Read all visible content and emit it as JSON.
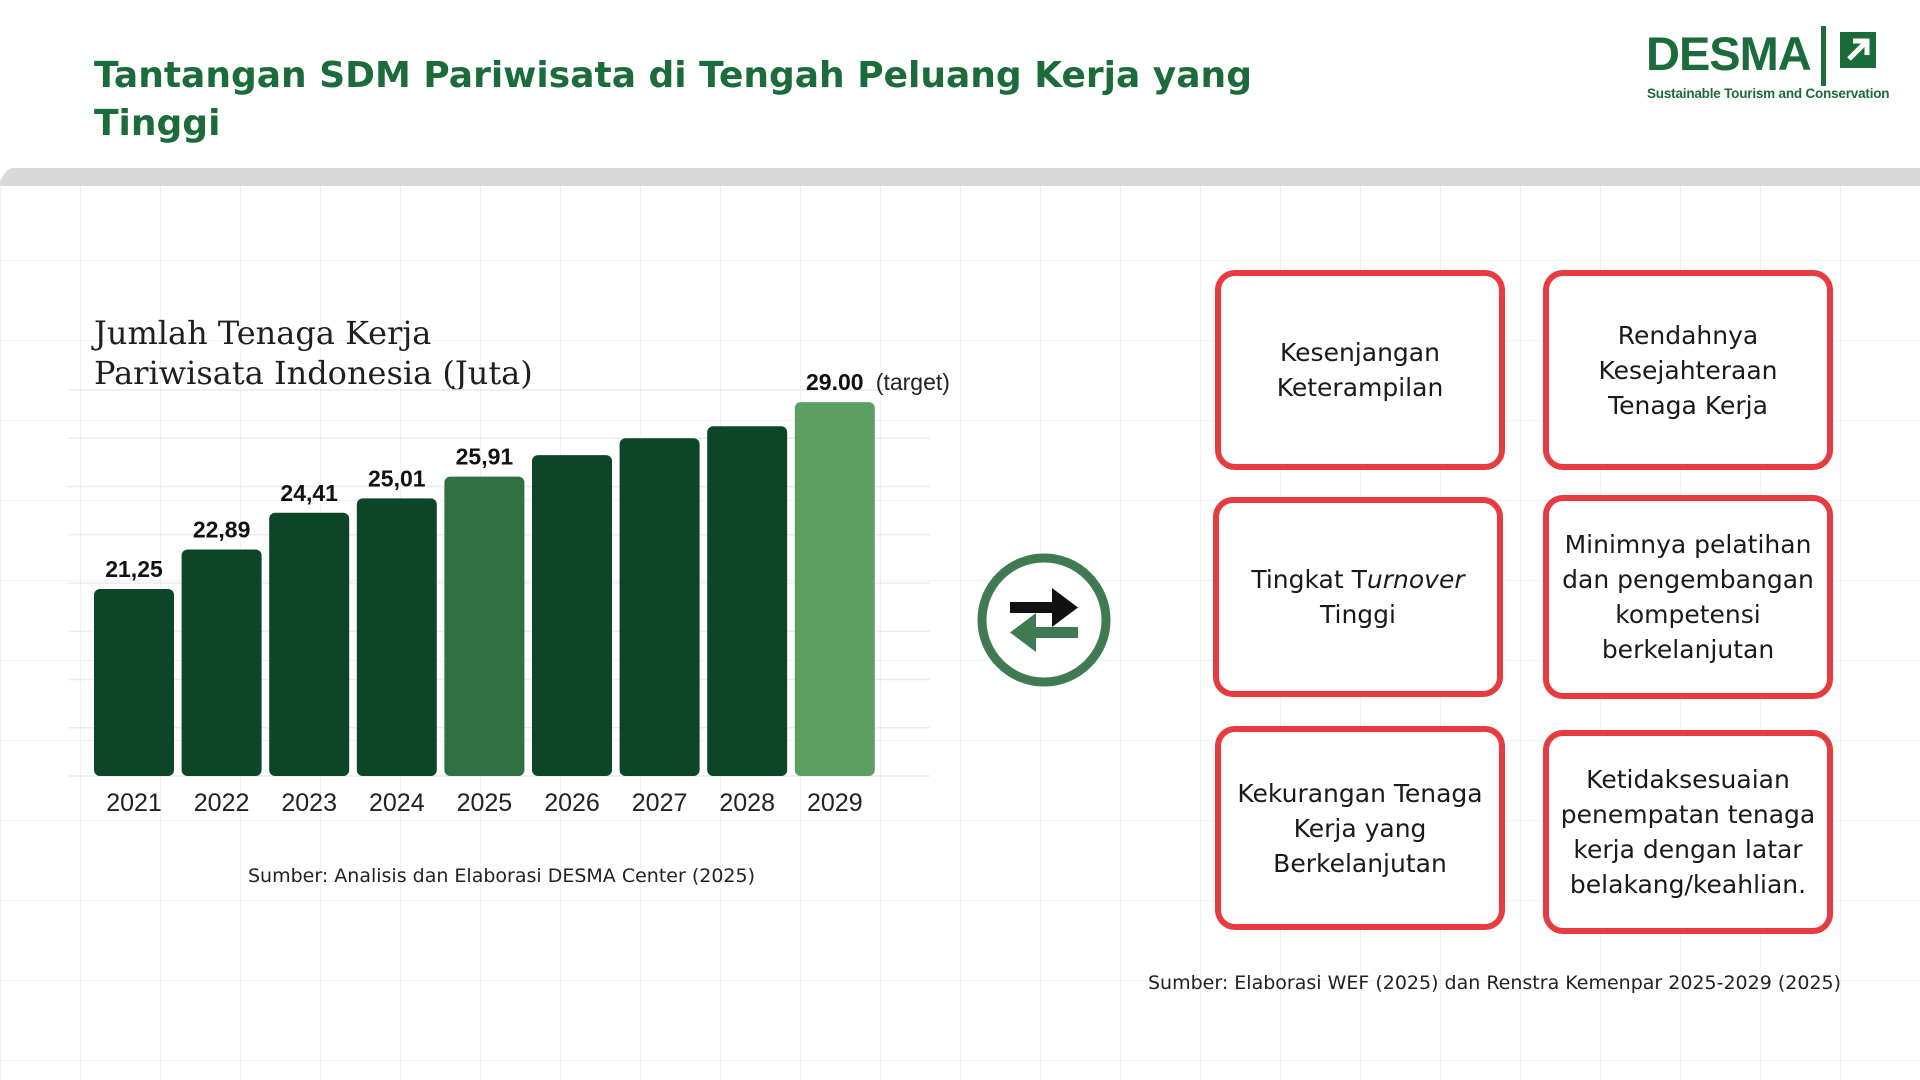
{
  "header": {
    "title": "Tantangan SDM Pariwisata di Tengah Peluang Kerja yang Tinggi",
    "logo_word": "DESMA",
    "logo_tagline": "Sustainable Tourism and Conservation",
    "brand_color": "#1c6b3a"
  },
  "chart": {
    "title_line1": "Jumlah Tenaga Kerja",
    "title_line2": "Pariwisata Indonesia (Juta)",
    "source": "Sumber: Analisis dan Elaborasi DESMA Center (2025)"
  },
  "chart_data": {
    "type": "bar",
    "title": "Jumlah Tenaga Kerja Pariwisata Indonesia (Juta)",
    "categories": [
      "2021",
      "2022",
      "2023",
      "2024",
      "2025",
      "2026",
      "2027",
      "2028",
      "2029"
    ],
    "values": [
      21.25,
      22.89,
      24.41,
      25.01,
      25.91,
      26.8,
      27.5,
      28.0,
      29.0
    ],
    "labels": [
      "21,25",
      "22,89",
      "24,41",
      "25,01",
      "25,91",
      "",
      "",
      "",
      "29.00"
    ],
    "target_note": "(target)",
    "colors": [
      "#0d4529",
      "#0d4529",
      "#0d4529",
      "#0d4529",
      "#2e7043",
      "#0d4529",
      "#0d4529",
      "#0d4529",
      "#5c9f62"
    ],
    "ylim": [
      13.5,
      29.5
    ],
    "grid": true,
    "xlabel": "",
    "ylabel": ""
  },
  "exchange_icon": "exchange-arrows-icon",
  "cards": [
    {
      "text": "Kesenjangan Keterampilan"
    },
    {
      "text": "Rendahnya Kesejahteraan Tenaga Kerja"
    },
    {
      "text_before": "Tingkat T",
      "text_italic": "urnover",
      "text_after": " Tinggi"
    },
    {
      "text": "Minimnya pelatihan dan pengembangan kompetensi berkelanjutan"
    },
    {
      "text": "Kekurangan Tenaga Kerja yang Berkelanjutan"
    },
    {
      "text": "Ketidaksesuaian penempatan tenaga kerja dengan latar belakang/keahlian."
    }
  ],
  "cards_source": "Sumber: Elaborasi WEF (2025) dan Renstra Kemenpar 2025-2029 (2025)",
  "colors": {
    "card_border": "#e63b3f",
    "icon": "#3f7a52"
  }
}
